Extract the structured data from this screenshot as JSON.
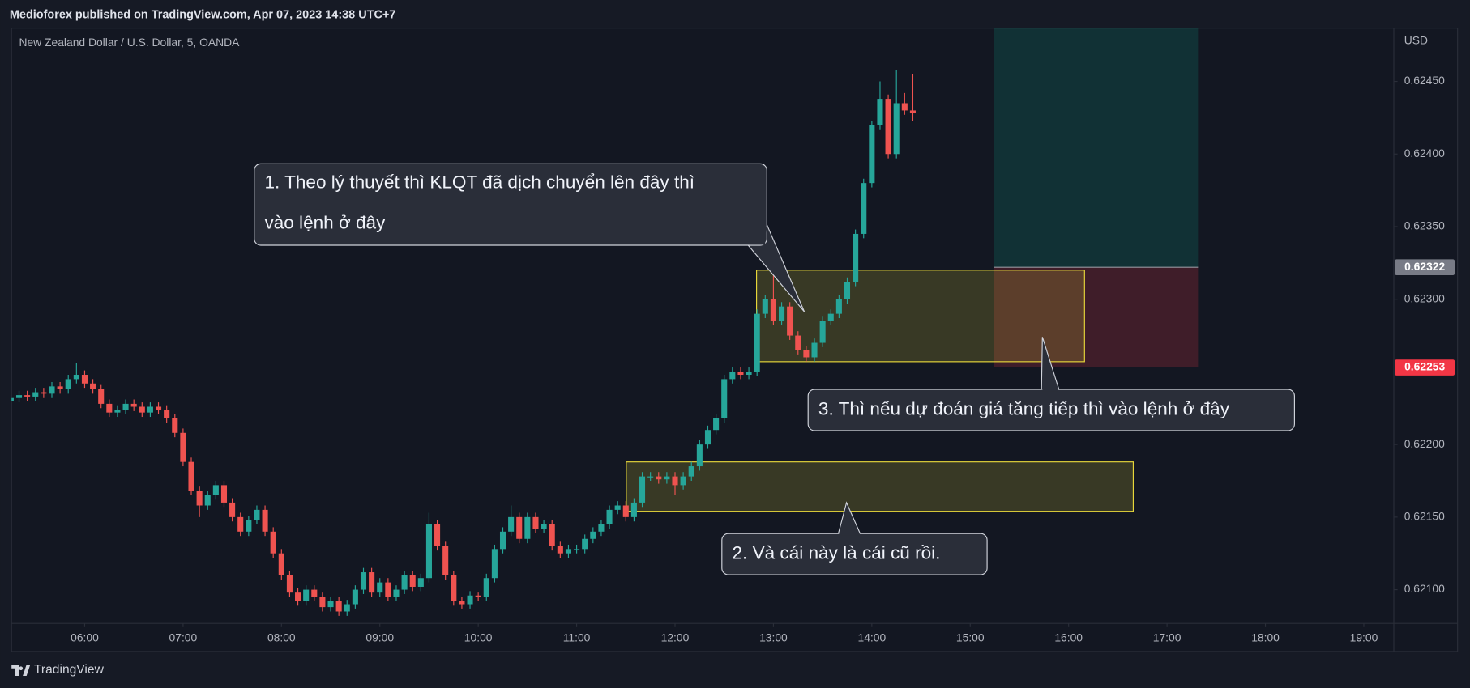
{
  "header": {
    "publisher": "Medioforex published on TradingView.com, Apr 07, 2023 14:38 UTC+7"
  },
  "footer": {
    "brand": "TradingView"
  },
  "chart_data": {
    "type": "candlestick",
    "title": "New Zealand Dollar / U.S. Dollar, 5, OANDA",
    "y_axis_label": "USD",
    "up_color": "#26a69a",
    "down_color": "#ef5350",
    "x": [
      315,
      320,
      325,
      330,
      335,
      340,
      345,
      350,
      355,
      360,
      365,
      370,
      375,
      380,
      385,
      390,
      395,
      400,
      405,
      410,
      415,
      420,
      425,
      430,
      435,
      440,
      445,
      450,
      455,
      460,
      465,
      470,
      475,
      480,
      485,
      490,
      495,
      500,
      505,
      510,
      515,
      520,
      525,
      530,
      535,
      540,
      545,
      550,
      555,
      560,
      565,
      570,
      575,
      580,
      585,
      590,
      595,
      600,
      605,
      610,
      615,
      620,
      625,
      630,
      635,
      640,
      645,
      650,
      655,
      660,
      665,
      670,
      675,
      680,
      685,
      690,
      695,
      700,
      705,
      710,
      715,
      720,
      725,
      730,
      735,
      740,
      745,
      750,
      755,
      760,
      765,
      770,
      775,
      780,
      785,
      790,
      795,
      800,
      805,
      810,
      815,
      820,
      825,
      830,
      835,
      840,
      845,
      850,
      855,
      860,
      865
    ],
    "open": [
      0.6223,
      0.62232,
      0.62234,
      0.62233,
      0.62236,
      0.62235,
      0.6224,
      0.62238,
      0.62245,
      0.62248,
      0.62242,
      0.62238,
      0.62228,
      0.62222,
      0.62224,
      0.62228,
      0.62226,
      0.62222,
      0.62226,
      0.62224,
      0.62218,
      0.62208,
      0.62188,
      0.62168,
      0.62158,
      0.62165,
      0.62172,
      0.6216,
      0.6215,
      0.6214,
      0.62148,
      0.62155,
      0.6214,
      0.62125,
      0.6211,
      0.62098,
      0.62092,
      0.621,
      0.62095,
      0.62088,
      0.62092,
      0.62085,
      0.6209,
      0.621,
      0.62112,
      0.62098,
      0.62105,
      0.62095,
      0.621,
      0.6211,
      0.62102,
      0.62108,
      0.62145,
      0.6213,
      0.6211,
      0.62092,
      0.6209,
      0.62096,
      0.62095,
      0.62108,
      0.62128,
      0.6214,
      0.6215,
      0.62135,
      0.6215,
      0.62142,
      0.62145,
      0.6213,
      0.62125,
      0.62128,
      0.62128,
      0.62135,
      0.6214,
      0.62145,
      0.62155,
      0.62158,
      0.6215,
      0.6216,
      0.62178,
      0.62178,
      0.62176,
      0.62178,
      0.62172,
      0.62178,
      0.62185,
      0.622,
      0.6221,
      0.62218,
      0.62245,
      0.6225,
      0.62248,
      0.6225,
      0.6229,
      0.623,
      0.62285,
      0.62295,
      0.62275,
      0.62265,
      0.6226,
      0.6227,
      0.62285,
      0.6229,
      0.623,
      0.62312,
      0.62345,
      0.6238,
      0.6242,
      0.62438,
      0.624,
      0.62435,
      0.6243
    ],
    "high": [
      0.62235,
      0.62237,
      0.62237,
      0.62239,
      0.62239,
      0.62243,
      0.62243,
      0.62248,
      0.62256,
      0.62251,
      0.62245,
      0.62241,
      0.62231,
      0.62227,
      0.62231,
      0.62231,
      0.62229,
      0.62229,
      0.62229,
      0.62227,
      0.62221,
      0.62211,
      0.62191,
      0.62171,
      0.62168,
      0.62175,
      0.62175,
      0.62163,
      0.62153,
      0.62151,
      0.62158,
      0.62158,
      0.62143,
      0.62128,
      0.62113,
      0.62101,
      0.62103,
      0.62103,
      0.62098,
      0.62095,
      0.62095,
      0.62093,
      0.62103,
      0.62115,
      0.62115,
      0.62108,
      0.62108,
      0.62103,
      0.62113,
      0.62113,
      0.62111,
      0.62153,
      0.62148,
      0.62133,
      0.62113,
      0.62095,
      0.62099,
      0.62098,
      0.62111,
      0.62131,
      0.62143,
      0.62158,
      0.62153,
      0.62153,
      0.62153,
      0.62148,
      0.62148,
      0.62133,
      0.62131,
      0.62131,
      0.62138,
      0.62143,
      0.62148,
      0.62158,
      0.62161,
      0.62161,
      0.62163,
      0.62181,
      0.62181,
      0.62181,
      0.62181,
      0.62181,
      0.62181,
      0.62188,
      0.62203,
      0.62213,
      0.62221,
      0.62248,
      0.62253,
      0.62253,
      0.62253,
      0.62293,
      0.62303,
      0.6232,
      0.62298,
      0.62298,
      0.62278,
      0.62268,
      0.62273,
      0.62288,
      0.62293,
      0.62303,
      0.62315,
      0.62348,
      0.62383,
      0.62423,
      0.6245,
      0.62441,
      0.62458,
      0.62442,
      0.62455
    ],
    "low": [
      0.62227,
      0.62229,
      0.6223,
      0.6223,
      0.62232,
      0.62232,
      0.62235,
      0.62235,
      0.62242,
      0.62239,
      0.62235,
      0.62225,
      0.62219,
      0.62219,
      0.62221,
      0.62223,
      0.62219,
      0.62219,
      0.62221,
      0.62215,
      0.62205,
      0.62185,
      0.62165,
      0.6215,
      0.62155,
      0.62162,
      0.62157,
      0.62147,
      0.62137,
      0.62137,
      0.62145,
      0.62137,
      0.62122,
      0.62107,
      0.62095,
      0.62089,
      0.62089,
      0.62092,
      0.62085,
      0.62085,
      0.62082,
      0.62082,
      0.62087,
      0.62097,
      0.62095,
      0.62095,
      0.62092,
      0.62092,
      0.62097,
      0.62099,
      0.62099,
      0.62105,
      0.62127,
      0.62107,
      0.62089,
      0.62087,
      0.62087,
      0.62092,
      0.62092,
      0.62105,
      0.62125,
      0.62137,
      0.62132,
      0.62132,
      0.62139,
      0.62139,
      0.62127,
      0.62122,
      0.62122,
      0.62125,
      0.62125,
      0.62132,
      0.62137,
      0.62142,
      0.62152,
      0.62147,
      0.62147,
      0.62157,
      0.62175,
      0.62173,
      0.62173,
      0.62165,
      0.62169,
      0.62175,
      0.62182,
      0.62197,
      0.62207,
      0.62215,
      0.62242,
      0.62245,
      0.62245,
      0.62247,
      0.62287,
      0.62282,
      0.62282,
      0.62272,
      0.62262,
      0.62257,
      0.62257,
      0.62267,
      0.62282,
      0.62287,
      0.62297,
      0.62309,
      0.62342,
      0.62377,
      0.62417,
      0.62397,
      0.62397,
      0.62427,
      0.62423
    ],
    "close": [
      0.62232,
      0.62234,
      0.62233,
      0.62236,
      0.62235,
      0.6224,
      0.62238,
      0.62245,
      0.62248,
      0.62242,
      0.62238,
      0.62228,
      0.62222,
      0.62224,
      0.62228,
      0.62226,
      0.62222,
      0.62226,
      0.62224,
      0.62218,
      0.62208,
      0.62188,
      0.62168,
      0.62158,
      0.62165,
      0.62172,
      0.6216,
      0.6215,
      0.6214,
      0.62148,
      0.62155,
      0.6214,
      0.62125,
      0.6211,
      0.62098,
      0.62092,
      0.621,
      0.62095,
      0.62088,
      0.62092,
      0.62085,
      0.6209,
      0.621,
      0.62112,
      0.62098,
      0.62105,
      0.62095,
      0.621,
      0.6211,
      0.62102,
      0.62108,
      0.62145,
      0.6213,
      0.6211,
      0.62092,
      0.6209,
      0.62096,
      0.62095,
      0.62108,
      0.62128,
      0.6214,
      0.6215,
      0.62135,
      0.6215,
      0.62142,
      0.62145,
      0.6213,
      0.62125,
      0.62128,
      0.62128,
      0.62135,
      0.6214,
      0.62145,
      0.62155,
      0.62158,
      0.6215,
      0.6216,
      0.62178,
      0.62178,
      0.62176,
      0.62178,
      0.62172,
      0.62178,
      0.62185,
      0.622,
      0.6221,
      0.62218,
      0.62245,
      0.6225,
      0.62248,
      0.6225,
      0.6229,
      0.623,
      0.62285,
      0.62295,
      0.62275,
      0.62265,
      0.6226,
      0.6227,
      0.62285,
      0.6229,
      0.623,
      0.62312,
      0.62345,
      0.6238,
      0.6242,
      0.62438,
      0.624,
      0.62435,
      0.6243,
      0.62428
    ],
    "xlim": [
      315.4,
      1158.3
    ],
    "xticks": [
      {
        "value": 360,
        "label": "06:00"
      },
      {
        "value": 420,
        "label": "07:00"
      },
      {
        "value": 480,
        "label": "08:00"
      },
      {
        "value": 540,
        "label": "09:00"
      },
      {
        "value": 600,
        "label": "10:00"
      },
      {
        "value": 660,
        "label": "11:00"
      },
      {
        "value": 720,
        "label": "12:00"
      },
      {
        "value": 780,
        "label": "13:00"
      },
      {
        "value": 840,
        "label": "14:00"
      },
      {
        "value": 900,
        "label": "15:00"
      },
      {
        "value": 960,
        "label": "16:00"
      },
      {
        "value": 1020,
        "label": "17:00"
      },
      {
        "value": 1080,
        "label": "18:00"
      },
      {
        "value": 1140,
        "label": "19:00"
      }
    ],
    "ylim": [
      0.620768,
      0.624867
    ],
    "yticks": [
      {
        "value": 0.621,
        "label": "0.62100"
      },
      {
        "value": 0.6215,
        "label": "0.62150"
      },
      {
        "value": 0.622,
        "label": "0.62200"
      },
      {
        "value": 0.6225,
        "label": "0.62250"
      },
      {
        "value": 0.623,
        "label": "0.62300"
      },
      {
        "value": 0.6235,
        "label": "0.62350"
      },
      {
        "value": 0.624,
        "label": "0.62400"
      },
      {
        "value": 0.6245,
        "label": "0.62450"
      }
    ],
    "price_labels": [
      {
        "value": 0.62322,
        "color": "#787b86"
      },
      {
        "value": 0.62253,
        "color": "#f23645"
      }
    ],
    "zones": [
      {
        "x": [
          769.7,
          969.7
        ],
        "y": [
          0.62257,
          0.6232
        ],
        "color": "#e6d63a"
      },
      {
        "x": [
          690.3,
          999.4
        ],
        "y": [
          0.62154,
          0.62188
        ],
        "color": "#e6d63a"
      }
    ],
    "position": {
      "x": [
        914.3,
        1038.9
      ],
      "entry": 0.62322,
      "target": 0.6249,
      "stop": 0.62253,
      "profit_color": "#089981",
      "loss_color": "#f23645"
    },
    "annotations": [
      {
        "lines": [
          "1. Theo lý thuyết thì KLQT đã dịch chuyển lên đây thì",
          "vào lệnh ở đây"
        ]
      },
      {
        "lines": [
          "2. Và cái này là cái cũ rồi."
        ]
      },
      {
        "lines": [
          "3. Thì nếu dự đoán giá tăng tiếp thì vào lệnh ở đây"
        ]
      }
    ]
  }
}
